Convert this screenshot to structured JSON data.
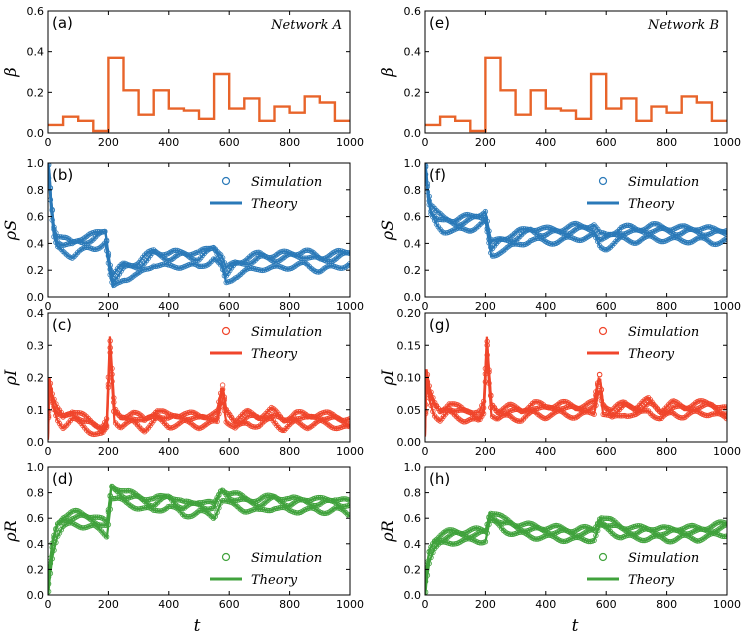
{
  "colors": {
    "beta": "#e8642a",
    "S": "#2a79b8",
    "I": "#f0452b",
    "R": "#40a23c"
  },
  "legend": {
    "sim": "Simulation",
    "theory": "Theory"
  },
  "axes": {
    "xlabel_left": "t",
    "xlabel_right": "t",
    "xticks": [
      "0",
      "200",
      "400",
      "600",
      "800",
      "1000"
    ]
  },
  "chart_data": [
    {
      "id": "a",
      "panel_label": "(a)",
      "type": "line",
      "kind": "beta",
      "network_label": "Network A",
      "ylabel": "β",
      "xlim": [
        0,
        1000
      ],
      "ylim": [
        0,
        0.6
      ],
      "yticks": [
        "0.0",
        "0.2",
        "0.4",
        "0.6"
      ],
      "series": [
        {
          "name": "beta",
          "step": true,
          "x": [
            0,
            50,
            100,
            150,
            200,
            250,
            300,
            350,
            400,
            450,
            500,
            550,
            600,
            650,
            700,
            750,
            800,
            850,
            900,
            950,
            1000
          ],
          "y": [
            0.04,
            0.08,
            0.06,
            0.01,
            0.37,
            0.21,
            0.09,
            0.21,
            0.12,
            0.11,
            0.07,
            0.29,
            0.12,
            0.17,
            0.06,
            0.13,
            0.1,
            0.18,
            0.15,
            0.06,
            0.06
          ]
        }
      ]
    },
    {
      "id": "e",
      "panel_label": "(e)",
      "type": "line",
      "kind": "beta",
      "network_label": "Network B",
      "ylabel": "β",
      "xlim": [
        0,
        1000
      ],
      "ylim": [
        0,
        0.6
      ],
      "yticks": [
        "0.0",
        "0.2",
        "0.4",
        "0.6"
      ],
      "series": [
        {
          "name": "beta",
          "step": true,
          "x": [
            0,
            50,
            100,
            150,
            200,
            250,
            300,
            350,
            400,
            450,
            500,
            550,
            600,
            650,
            700,
            750,
            800,
            850,
            900,
            950,
            1000
          ],
          "y": [
            0.04,
            0.08,
            0.06,
            0.01,
            0.37,
            0.21,
            0.09,
            0.21,
            0.12,
            0.11,
            0.07,
            0.29,
            0.12,
            0.17,
            0.06,
            0.13,
            0.1,
            0.18,
            0.15,
            0.06,
            0.06
          ]
        }
      ]
    },
    {
      "id": "b",
      "panel_label": "(b)",
      "type": "line",
      "kind": "S",
      "ylabel": "ρS",
      "xlim": [
        0,
        1000
      ],
      "ylim": [
        0,
        1.0
      ],
      "legend_position": "top-right",
      "yticks": [
        "0.0",
        "0.2",
        "0.4",
        "0.6",
        "0.8",
        "1.0"
      ],
      "series": [
        {
          "name": "Theory",
          "x": [
            0,
            5,
            10,
            20,
            30,
            50,
            80,
            100,
            150,
            190,
            205,
            215,
            250,
            300,
            350,
            400,
            450,
            500,
            550,
            575,
            590,
            620,
            700,
            750,
            800,
            850,
            900,
            950,
            1000
          ],
          "y": [
            0.98,
            0.88,
            0.7,
            0.48,
            0.4,
            0.37,
            0.35,
            0.38,
            0.4,
            0.45,
            0.2,
            0.1,
            0.18,
            0.2,
            0.29,
            0.26,
            0.28,
            0.26,
            0.33,
            0.25,
            0.14,
            0.2,
            0.26,
            0.25,
            0.27,
            0.28,
            0.24,
            0.26,
            0.29
          ]
        }
      ],
      "spread": [
        0.03,
        0.06,
        -0.04
      ]
    },
    {
      "id": "f",
      "panel_label": "(f)",
      "type": "line",
      "kind": "S",
      "ylabel": "ρS",
      "xlim": [
        0,
        1000
      ],
      "ylim": [
        0,
        1.0
      ],
      "legend_position": "top-right",
      "yticks": [
        "0.0",
        "0.2",
        "0.4",
        "0.6",
        "0.8",
        "1.0"
      ],
      "series": [
        {
          "name": "Theory",
          "x": [
            0,
            5,
            10,
            20,
            40,
            60,
            100,
            150,
            200,
            212,
            220,
            250,
            300,
            350,
            400,
            450,
            500,
            560,
            580,
            600,
            650,
            700,
            750,
            800,
            850,
            900,
            950,
            1000
          ],
          "y": [
            0.98,
            0.88,
            0.75,
            0.63,
            0.56,
            0.53,
            0.52,
            0.54,
            0.58,
            0.42,
            0.33,
            0.38,
            0.41,
            0.46,
            0.44,
            0.45,
            0.47,
            0.48,
            0.4,
            0.4,
            0.46,
            0.45,
            0.47,
            0.46,
            0.45,
            0.46,
            0.44,
            0.45
          ]
        }
      ],
      "spread": [
        0.03,
        0.06,
        -0.03
      ]
    },
    {
      "id": "c",
      "panel_label": "(c)",
      "type": "line",
      "kind": "I",
      "ylabel": "ρI",
      "xlim": [
        0,
        1000
      ],
      "ylim": [
        0,
        0.4
      ],
      "legend_position": "top-right",
      "yticks": [
        "0.0",
        "0.1",
        "0.2",
        "0.3",
        "0.4"
      ],
      "series": [
        {
          "name": "Theory",
          "x": [
            0,
            5,
            15,
            30,
            50,
            80,
            100,
            130,
            150,
            180,
            195,
            205,
            212,
            220,
            240,
            280,
            320,
            360,
            400,
            450,
            500,
            560,
            578,
            590,
            620,
            660,
            700,
            740,
            780,
            820,
            860,
            900,
            950,
            1000
          ],
          "y": [
            0.01,
            0.18,
            0.12,
            0.08,
            0.06,
            0.08,
            0.07,
            0.05,
            0.04,
            0.03,
            0.05,
            0.3,
            0.2,
            0.08,
            0.06,
            0.07,
            0.05,
            0.08,
            0.06,
            0.07,
            0.06,
            0.07,
            0.15,
            0.08,
            0.05,
            0.07,
            0.06,
            0.08,
            0.05,
            0.07,
            0.06,
            0.07,
            0.06,
            0.05
          ]
        }
      ],
      "spread": [
        0.01,
        0.02,
        -0.01
      ]
    },
    {
      "id": "g",
      "panel_label": "(g)",
      "type": "line",
      "kind": "I",
      "ylabel": "ρI",
      "xlim": [
        0,
        1000
      ],
      "ylim": [
        0,
        0.2
      ],
      "legend_position": "top-right",
      "yticks": [
        "0.00",
        "0.05",
        "0.10",
        "0.15",
        "0.20"
      ],
      "series": [
        {
          "name": "Theory",
          "x": [
            0,
            5,
            15,
            30,
            50,
            80,
            100,
            130,
            150,
            180,
            195,
            205,
            212,
            220,
            240,
            280,
            320,
            360,
            400,
            450,
            500,
            560,
            578,
            590,
            620,
            660,
            700,
            740,
            780,
            820,
            860,
            900,
            950,
            1000
          ],
          "y": [
            0.01,
            0.1,
            0.07,
            0.05,
            0.04,
            0.05,
            0.045,
            0.04,
            0.04,
            0.035,
            0.05,
            0.15,
            0.1,
            0.05,
            0.04,
            0.045,
            0.04,
            0.05,
            0.045,
            0.05,
            0.045,
            0.05,
            0.095,
            0.05,
            0.04,
            0.05,
            0.045,
            0.055,
            0.04,
            0.05,
            0.045,
            0.05,
            0.05,
            0.04
          ]
        }
      ],
      "spread": [
        0.005,
        0.01,
        -0.005
      ]
    },
    {
      "id": "d",
      "panel_label": "(d)",
      "type": "line",
      "kind": "R",
      "ylabel": "ρR",
      "xlim": [
        0,
        1000
      ],
      "ylim": [
        0,
        1.0
      ],
      "legend_position": "bottom-right",
      "yticks": [
        "0.0",
        "0.2",
        "0.4",
        "0.6",
        "0.8",
        "1.0"
      ],
      "series": [
        {
          "name": "Theory",
          "x": [
            0,
            5,
            15,
            30,
            50,
            80,
            100,
            150,
            195,
            210,
            230,
            260,
            300,
            350,
            400,
            450,
            500,
            550,
            575,
            600,
            650,
            700,
            750,
            800,
            850,
            900,
            950,
            1000
          ],
          "y": [
            0.0,
            0.15,
            0.35,
            0.5,
            0.56,
            0.58,
            0.58,
            0.56,
            0.5,
            0.8,
            0.78,
            0.74,
            0.72,
            0.68,
            0.73,
            0.65,
            0.68,
            0.64,
            0.78,
            0.74,
            0.7,
            0.68,
            0.72,
            0.68,
            0.7,
            0.68,
            0.7,
            0.66
          ]
        }
      ],
      "spread": [
        0.03,
        0.06,
        -0.03
      ]
    },
    {
      "id": "h",
      "panel_label": "(h)",
      "type": "line",
      "kind": "R",
      "ylabel": "ρR",
      "xlim": [
        0,
        1000
      ],
      "ylim": [
        0,
        1.0
      ],
      "legend_position": "bottom-right",
      "yticks": [
        "0.0",
        "0.2",
        "0.4",
        "0.6",
        "0.8",
        "1.0"
      ],
      "series": [
        {
          "name": "Theory",
          "x": [
            0,
            5,
            15,
            30,
            50,
            80,
            100,
            150,
            200,
            215,
            230,
            260,
            300,
            350,
            400,
            450,
            500,
            560,
            580,
            600,
            650,
            700,
            750,
            800,
            850,
            900,
            950,
            1000
          ],
          "y": [
            0.0,
            0.15,
            0.3,
            0.38,
            0.41,
            0.43,
            0.44,
            0.44,
            0.45,
            0.6,
            0.58,
            0.53,
            0.5,
            0.48,
            0.47,
            0.46,
            0.45,
            0.46,
            0.56,
            0.53,
            0.48,
            0.46,
            0.47,
            0.45,
            0.47,
            0.46,
            0.48,
            0.5
          ]
        }
      ],
      "spread": [
        0.03,
        0.06,
        -0.02
      ]
    }
  ]
}
